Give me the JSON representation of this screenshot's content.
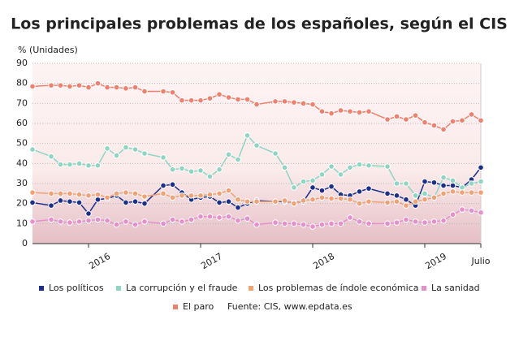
{
  "chart_data": {
    "type": "line",
    "title": "Los principales problemas de los españoles, según el CIS",
    "y_label": "% (Unidades)",
    "source": "Fuente: CIS, www.epdata.es",
    "x": [
      2015.5,
      2015.667,
      2015.75,
      2015.833,
      2015.917,
      2016,
      2016.083,
      2016.167,
      2016.25,
      2016.333,
      2016.417,
      2016.5,
      2016.667,
      2016.75,
      2016.833,
      2016.917,
      2017,
      2017.083,
      2017.167,
      2017.25,
      2017.333,
      2017.417,
      2017.5,
      2017.667,
      2017.75,
      2017.833,
      2017.917,
      2018,
      2018.083,
      2018.167,
      2018.25,
      2018.333,
      2018.417,
      2018.5,
      2018.667,
      2018.75,
      2018.833,
      2018.917,
      2019,
      2019.083,
      2019.167,
      2019.25,
      2019.333,
      2019.417,
      2019.5
    ],
    "xlim": [
      2015.5,
      2019.5
    ],
    "xticks": [
      2016,
      2017,
      2018,
      2019,
      {
        "value": 2019.5,
        "label": "Julio"
      }
    ],
    "ylim": [
      0,
      90
    ],
    "yticks": [
      0,
      10,
      20,
      30,
      40,
      50,
      60,
      70,
      80,
      90
    ],
    "grid": true,
    "series": [
      {
        "name": "Los políticos",
        "color": "#1a2f8a",
        "values": [
          20.5,
          19,
          21.5,
          21,
          20.5,
          15,
          22,
          22.5,
          24,
          20.5,
          21,
          20,
          29,
          29.5,
          25.5,
          22,
          23,
          23.5,
          20.5,
          21,
          18,
          20,
          21.5,
          21,
          21,
          20.5,
          21,
          28,
          26.5,
          28.5,
          24.5,
          24,
          26,
          27.5,
          25,
          24,
          22,
          19,
          31,
          30.5,
          29,
          29,
          28,
          32,
          38
        ]
      },
      {
        "name": "La corrupción y el fraude",
        "color": "#8fd5c4",
        "values": [
          47,
          43.5,
          39.5,
          39.5,
          40,
          39,
          39,
          47.5,
          44,
          48,
          47,
          45,
          43,
          37,
          37.5,
          36,
          36.5,
          33.5,
          37,
          44.5,
          42,
          54,
          49,
          45,
          38,
          28,
          31,
          31.5,
          34.5,
          38.5,
          34.5,
          38,
          39.5,
          39,
          38.5,
          30,
          30,
          24,
          25,
          23,
          33,
          31.5,
          28,
          30,
          31
        ]
      },
      {
        "name": "Los problemas de índole económica",
        "color": "#f1a274",
        "values": [
          25.5,
          25,
          25,
          25,
          24.5,
          24,
          24.5,
          23,
          25,
          25.5,
          25,
          23.5,
          25,
          23,
          24,
          24,
          24,
          24.5,
          25,
          26.5,
          22,
          21,
          21,
          21,
          21.5,
          20,
          21.5,
          22,
          23,
          22.5,
          22.5,
          22,
          20,
          21,
          20.5,
          21,
          19,
          21,
          22,
          23,
          25,
          26,
          25.5,
          25.5,
          25.5
        ]
      },
      {
        "name": "La sanidad",
        "color": "#e690cb",
        "values": [
          11,
          12,
          11,
          10.5,
          11,
          11.5,
          12,
          11.5,
          9.5,
          11,
          9.5,
          11,
          10,
          12,
          11,
          12,
          13.5,
          13.5,
          13,
          13.5,
          11.5,
          12.5,
          9.5,
          10.5,
          10,
          10,
          9.5,
          8.5,
          9.5,
          10,
          10,
          13,
          11,
          10,
          10,
          10.5,
          12,
          11,
          10.5,
          11,
          11.5,
          14.5,
          17,
          16.5,
          15.5
        ]
      },
      {
        "name": "El paro",
        "color": "#f07f6d",
        "values": [
          78.5,
          79,
          79,
          78.5,
          79,
          78,
          80,
          78,
          78,
          77.5,
          78,
          76,
          76,
          75.5,
          71.5,
          71.5,
          71.5,
          72.5,
          74.5,
          73,
          72,
          72,
          69.5,
          71,
          71,
          70.5,
          70,
          69.5,
          66,
          65,
          66.5,
          66,
          65.5,
          66,
          62,
          63.5,
          62,
          64,
          60.5,
          59,
          57,
          61,
          61.5,
          64.5,
          61.5
        ]
      }
    ]
  }
}
